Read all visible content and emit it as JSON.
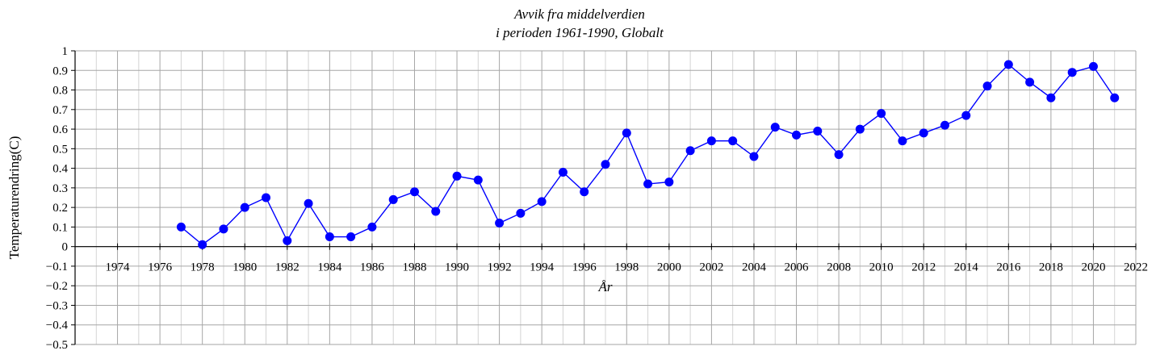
{
  "chart_data": {
    "type": "line",
    "title_line1": "Avvik fra middelverdien",
    "title_line2": "i perioden 1961-1990,  Globalt",
    "xlabel": "År",
    "ylabel": "Temperaturendring(C)",
    "xlim": [
      1972,
      2022
    ],
    "ylim": [
      -0.5,
      1
    ],
    "x_ticks": [
      1974,
      1976,
      1978,
      1980,
      1982,
      1984,
      1986,
      1988,
      1990,
      1992,
      1994,
      1996,
      1998,
      2000,
      2002,
      2004,
      2006,
      2008,
      2010,
      2012,
      2014,
      2016,
      2018,
      2020,
      2022
    ],
    "y_ticks": [
      -0.5,
      -0.4,
      -0.3,
      -0.2,
      -0.1,
      0,
      0.1,
      0.2,
      0.3,
      0.4,
      0.5,
      0.6,
      0.7,
      0.8,
      0.9,
      1
    ],
    "grid": true,
    "color": "#0000ff",
    "series": [
      {
        "x": [
          1977,
          1978,
          1979,
          1980,
          1981,
          1982,
          1983,
          1984,
          1985,
          1986,
          1987,
          1988,
          1989,
          1990,
          1991,
          1992,
          1993,
          1994,
          1995,
          1996,
          1997,
          1998,
          1999,
          2000,
          2001,
          2002,
          2003,
          2004,
          2005,
          2006,
          2007,
          2008,
          2009,
          2010,
          2011,
          2012,
          2013,
          2014,
          2015,
          2016,
          2017,
          2018,
          2019,
          2020,
          2021
        ],
        "y": [
          0.1,
          0.01,
          0.09,
          0.2,
          0.25,
          0.03,
          0.22,
          0.05,
          0.05,
          0.1,
          0.24,
          0.28,
          0.18,
          0.36,
          0.34,
          0.12,
          0.17,
          0.23,
          0.38,
          0.28,
          0.42,
          0.58,
          0.32,
          0.33,
          0.49,
          0.54,
          0.54,
          0.46,
          0.61,
          0.57,
          0.59,
          0.47,
          0.6,
          0.68,
          0.54,
          0.58,
          0.62,
          0.67,
          0.82,
          0.93,
          0.84,
          0.76,
          0.89,
          0.92,
          0.76
        ]
      }
    ]
  }
}
